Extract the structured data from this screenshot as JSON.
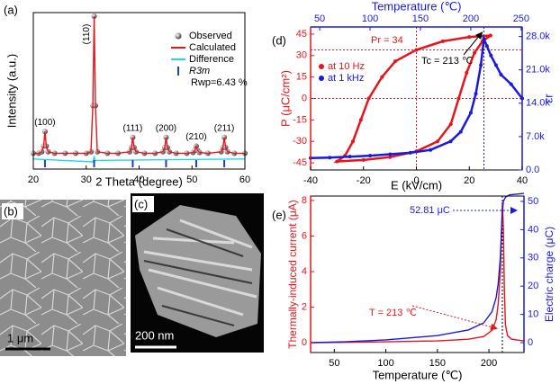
{
  "chart_data": [
    {
      "type": "line",
      "panel_label": "(a)",
      "xlabel": "2 Theta (degree)",
      "ylabel": "Intensity (a.u.)",
      "xlim": [
        20,
        60
      ],
      "xticks": [
        20,
        30,
        40,
        50,
        60
      ],
      "ylim": [
        -0.06,
        1.025
      ],
      "legend": "upper right",
      "series": [
        {
          "name": "Observed",
          "color": "#777777",
          "style": "markers",
          "x": [
            20,
            21,
            21.6,
            21.95,
            22.2,
            22.45,
            22.8,
            24,
            26,
            28,
            30,
            30.9,
            31.25,
            31.5,
            31.75,
            32.1,
            34,
            36,
            38.2,
            38.55,
            38.8,
            39.05,
            39.4,
            41,
            43,
            44.5,
            44.85,
            45.1,
            45.35,
            45.7,
            47,
            49,
            50.2,
            50.55,
            50.8,
            51.05,
            51.4,
            53,
            55.5,
            55.85,
            56.1,
            56.35,
            56.7,
            58,
            60
          ],
          "values": [
            0.05,
            0.05,
            0.06,
            0.1,
            0.2,
            0.1,
            0.06,
            0.05,
            0.05,
            0.05,
            0.05,
            0.06,
            0.38,
            1.0,
            0.38,
            0.06,
            0.05,
            0.05,
            0.06,
            0.09,
            0.16,
            0.09,
            0.06,
            0.05,
            0.05,
            0.06,
            0.09,
            0.16,
            0.09,
            0.06,
            0.05,
            0.05,
            0.055,
            0.07,
            0.1,
            0.07,
            0.055,
            0.05,
            0.06,
            0.09,
            0.16,
            0.09,
            0.06,
            0.05,
            0.05
          ]
        },
        {
          "name": "Calculated",
          "color": "#e8141b",
          "style": "line",
          "x": [
            20,
            21,
            21.6,
            21.95,
            22.2,
            22.45,
            22.8,
            24,
            26,
            28,
            30,
            30.9,
            31.25,
            31.5,
            31.75,
            32.1,
            34,
            36,
            38.2,
            38.55,
            38.8,
            39.05,
            39.4,
            41,
            43,
            44.5,
            44.85,
            45.1,
            45.35,
            45.7,
            47,
            49,
            50.2,
            50.55,
            50.8,
            51.05,
            51.4,
            53,
            55.5,
            55.85,
            56.1,
            56.35,
            56.7,
            58,
            60
          ],
          "values": [
            0.05,
            0.05,
            0.06,
            0.1,
            0.2,
            0.1,
            0.06,
            0.05,
            0.05,
            0.05,
            0.05,
            0.06,
            0.38,
            1.0,
            0.38,
            0.06,
            0.05,
            0.05,
            0.06,
            0.09,
            0.16,
            0.09,
            0.06,
            0.05,
            0.05,
            0.06,
            0.09,
            0.16,
            0.09,
            0.06,
            0.05,
            0.05,
            0.055,
            0.07,
            0.1,
            0.07,
            0.055,
            0.05,
            0.06,
            0.09,
            0.16,
            0.09,
            0.06,
            0.05,
            0.05
          ]
        },
        {
          "name": "Difference",
          "color": "#22d8e8",
          "style": "line",
          "x": [
            20,
            31.3,
            31.5,
            31.7,
            60
          ],
          "values": [
            0.01,
            -0.01,
            0.03,
            0.0,
            0.01
          ]
        },
        {
          "name": "R3m",
          "color": "#1f3fbf",
          "style": "ticks",
          "x": [
            22.2,
            31.5,
            38.8,
            45.1,
            50.8,
            56.1
          ]
        }
      ],
      "peak_labels": [
        "(100)",
        "(110)",
        "(111)",
        "(200)",
        "(210)",
        "(211)"
      ],
      "annotations": [
        {
          "text": "Rwp=6.43 %",
          "color": "#000000"
        }
      ]
    },
    {
      "type": "line",
      "panel_label": "(d)",
      "xlabel": "E (kV/cm)",
      "ylabel": "P (μC/cm²)",
      "x2label": "Temperature (℃)",
      "y2label": "εr",
      "xlim": [
        -40,
        40
      ],
      "xticks": [
        -40,
        -20,
        0,
        20,
        40
      ],
      "ylim": [
        -50,
        50
      ],
      "yticks": [
        -45,
        -30,
        -15,
        0,
        15,
        30,
        45
      ],
      "x2lim": [
        41,
        251
      ],
      "x2ticks": [
        50,
        100,
        150,
        200,
        250
      ],
      "y2lim": [
        0,
        30000
      ],
      "y2ticks": [
        {
          "value": 0,
          "label": "0.0"
        },
        {
          "value": 7000,
          "label": "7.0k"
        },
        {
          "value": 14000,
          "label": "14.0k"
        },
        {
          "value": 21000,
          "label": "21.0k"
        },
        {
          "value": 28000,
          "label": "28.0k"
        }
      ],
      "ycolor": "#e8141b",
      "y2color": "#1a1adb",
      "x2color": "#1a1adb",
      "legend": "upper left",
      "series": [
        {
          "name": "at 10 Hz",
          "color": "#e8141b",
          "style": "line-markers",
          "x": [
            28,
            20,
            10,
            0,
            -8,
            -13,
            -18,
            -21,
            -24,
            -27,
            -30,
            -20,
            -10,
            0,
            8,
            13,
            16,
            19,
            22,
            25,
            28
          ],
          "values": [
            44,
            43,
            40,
            34,
            26,
            15,
            0,
            -15,
            -30,
            -40,
            -44,
            -43,
            -41,
            -37,
            -30,
            -18,
            0,
            18,
            32,
            40,
            44
          ]
        },
        {
          "name": "at 1 kHz",
          "color": "#1a1adb",
          "style": "line-markers",
          "axis": "y2",
          "xaxis": "x2",
          "x": [
            41,
            60,
            80,
            100,
            120,
            140,
            160,
            180,
            190,
            200,
            205,
            210,
            213,
            216,
            220,
            225,
            230,
            240,
            251
          ],
          "values": [
            2500,
            2600,
            2800,
            3000,
            3300,
            3600,
            4200,
            6000,
            8000,
            12000,
            16000,
            22000,
            27500,
            26000,
            24000,
            22000,
            20000,
            18000,
            15000
          ]
        }
      ],
      "ref_lines": [
        {
          "axis": "y",
          "value": 34,
          "color": "#e8141b"
        },
        {
          "axis": "y",
          "value": 0,
          "color": "#e8141b"
        },
        {
          "axis": "x",
          "value": 0,
          "color": "#e8141b"
        },
        {
          "axis": "x2",
          "value": 213,
          "color": "#1a1adb"
        }
      ],
      "annotations": [
        {
          "text": "Pr = 34",
          "color": "#e8141b"
        },
        {
          "text": "Tc = 213 ℃",
          "color": "#000000"
        }
      ]
    },
    {
      "type": "line",
      "panel_label": "(e)",
      "xlabel": "Temperature (℃)",
      "ylabel": "Thermally-induced current (μA)",
      "y2label": "Electric charge (μC)",
      "xlim": [
        27,
        234
      ],
      "xticks": [
        50,
        100,
        150,
        200
      ],
      "ylim": [
        -0.55,
        8.25
      ],
      "yticks": [
        0,
        2,
        4,
        6,
        8
      ],
      "y2lim": [
        -3.5,
        51.9
      ],
      "y2ticks": [
        0,
        10,
        20,
        30,
        40,
        50
      ],
      "ycolor": "#e8141b",
      "y2color": "#1a1adb",
      "series": [
        {
          "name": "Thermally-induced current",
          "color": "#e8141b",
          "style": "line",
          "x": [
            27,
            60,
            100,
            150,
            180,
            195,
            203,
            207,
            209,
            211,
            212,
            213,
            214,
            215,
            216,
            218,
            222,
            234
          ],
          "values": [
            0,
            0.02,
            0.05,
            0.1,
            0.2,
            0.35,
            0.7,
            1.3,
            2.2,
            4,
            6,
            7.9,
            6.5,
            3,
            1,
            0.4,
            0.2,
            0.1
          ]
        },
        {
          "name": "Electric charge",
          "color": "#1a1adb",
          "style": "line",
          "axis": "y2",
          "x": [
            27,
            60,
            100,
            150,
            180,
            195,
            203,
            207,
            209,
            211,
            212,
            213,
            214,
            216,
            220,
            234
          ],
          "values": [
            0,
            0.3,
            1,
            2.5,
            4.5,
            7,
            11,
            16,
            21,
            30,
            38,
            46,
            50,
            51.5,
            52.3,
            52.81
          ]
        }
      ],
      "ref_lines": [
        {
          "axis": "x",
          "value": 213,
          "color": "#000000"
        }
      ],
      "annotations": [
        {
          "text": "52.81 μC",
          "color": "#1a1adb"
        },
        {
          "text": "T = 213 ℃",
          "color": "#e8141b"
        }
      ]
    }
  ],
  "images": [
    {
      "label": "(b)",
      "scale_bar": "1 μm"
    },
    {
      "label": "(c)",
      "scale_bar": "200 nm"
    }
  ]
}
